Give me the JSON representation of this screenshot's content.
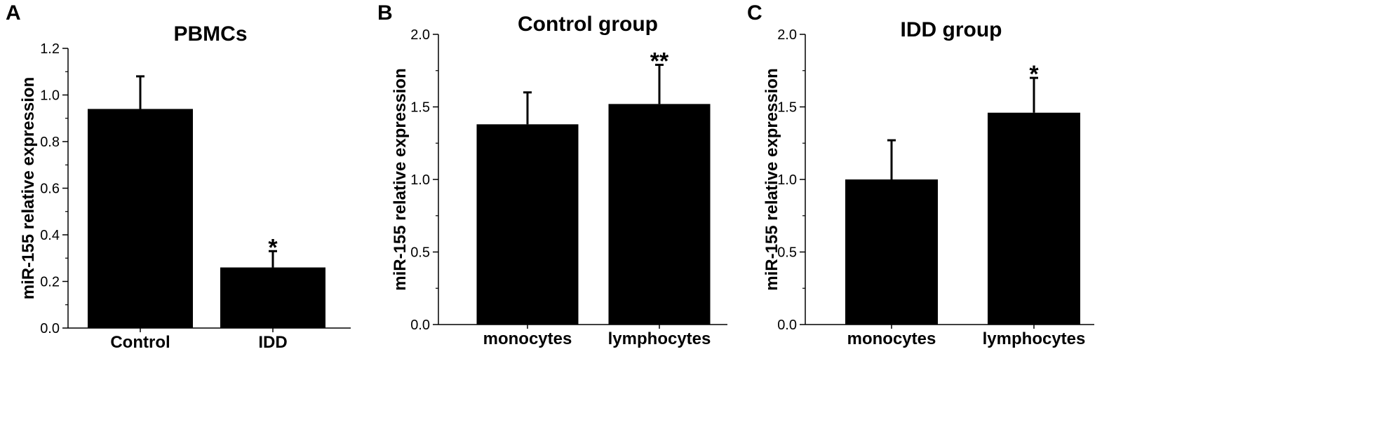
{
  "chart_data": [
    {
      "panel": "A",
      "type": "bar",
      "title": "PBMCs",
      "ylabel": "miR-155 relative expression",
      "xlabel": "",
      "categories": [
        "Control",
        "IDD"
      ],
      "values": [
        0.94,
        0.26
      ],
      "errors": [
        0.14,
        0.07
      ],
      "significance": [
        "",
        "*"
      ],
      "ylim": [
        0,
        1.2
      ],
      "yticks": [
        "0.0",
        "0.2",
        "0.4",
        "0.6",
        "0.8",
        "1.0",
        "1.2"
      ],
      "bar_color": "#000000"
    },
    {
      "panel": "B",
      "type": "bar",
      "title": "Control group",
      "ylabel": "miR-155 relative expression",
      "xlabel": "",
      "categories": [
        "monocytes",
        "lymphocytes"
      ],
      "values": [
        1.38,
        1.52
      ],
      "errors": [
        0.22,
        0.27
      ],
      "significance": [
        "",
        "**"
      ],
      "ylim": [
        0,
        2.0
      ],
      "yticks": [
        "0.0",
        "0.5",
        "1.0",
        "1.5",
        "2.0"
      ],
      "bar_color": "#000000"
    },
    {
      "panel": "C",
      "type": "bar",
      "title": "IDD group",
      "ylabel": "miR-155 relative expression",
      "xlabel": "",
      "categories": [
        "monocytes",
        "lymphocytes"
      ],
      "values": [
        1.0,
        1.46
      ],
      "errors": [
        0.27,
        0.24
      ],
      "significance": [
        "",
        "*"
      ],
      "ylim": [
        0,
        2.0
      ],
      "yticks": [
        "0.0",
        "0.5",
        "1.0",
        "1.5",
        "2.0"
      ],
      "bar_color": "#000000"
    }
  ]
}
